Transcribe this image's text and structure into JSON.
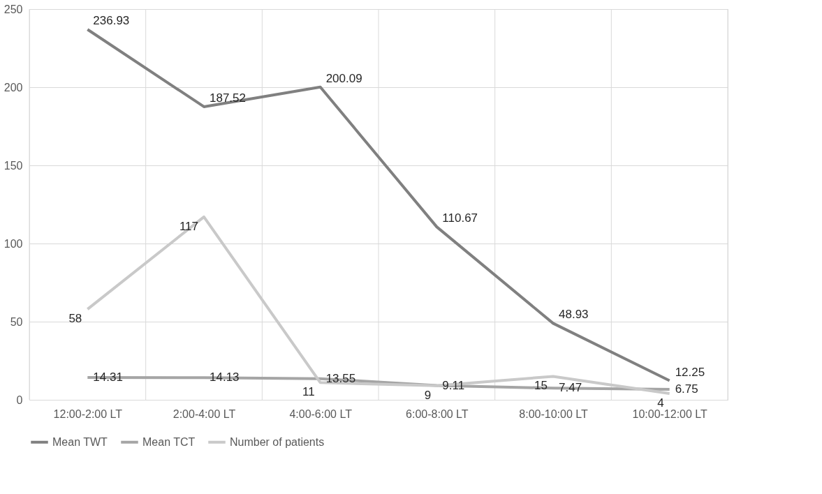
{
  "chart_data": {
    "type": "line",
    "categories": [
      "12:00-2:00 LT",
      "2:00-4:00 LT",
      "4:00-6:00 LT",
      "6:00-8:00 LT",
      "8:00-10:00 LT",
      "10:00-12:00 LT"
    ],
    "series": [
      {
        "name": "Mean TWT",
        "color": "#808080",
        "values": [
          236.93,
          187.52,
          200.09,
          110.67,
          48.93,
          12.25
        ]
      },
      {
        "name": "Mean TCT",
        "color": "#a5a5a5",
        "values": [
          14.31,
          14.13,
          13.55,
          9.11,
          7.47,
          6.75
        ]
      },
      {
        "name": "Number of patients",
        "color": "#c9c9c9",
        "values": [
          58,
          117,
          11,
          9,
          15,
          4
        ]
      }
    ],
    "ylim": [
      0,
      250
    ],
    "yticks": [
      0,
      50,
      100,
      150,
      200,
      250
    ],
    "grid": true,
    "legend": "bottom",
    "data_labels": true,
    "marker": "none",
    "line_style": "solid"
  }
}
